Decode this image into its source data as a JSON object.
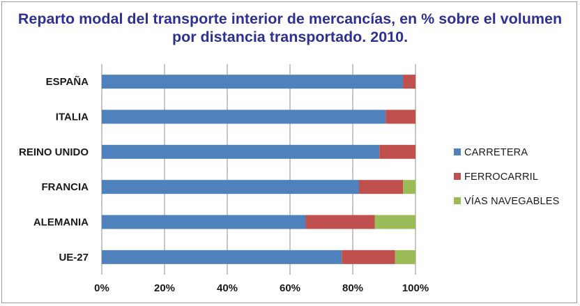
{
  "chart_data": {
    "type": "bar",
    "orientation": "horizontal",
    "stacked": true,
    "title_line1": "Reparto modal del transporte interior de mercancías, en % sobre el volumen",
    "title_line2": "por distancia transportado. 2010.",
    "categories": [
      "ESPAÑA",
      "ITALIA",
      "REINO UNIDO",
      "FRANCIA",
      "ALEMANIA",
      "UE-27"
    ],
    "series": [
      {
        "name": "CARRETERA",
        "color": "#4f81bd",
        "values": [
          96,
          90.5,
          88.5,
          82,
          65,
          76.5
        ]
      },
      {
        "name": "FERROCARRIL",
        "color": "#c0504d",
        "values": [
          4,
          9.5,
          11.5,
          14,
          22,
          17
        ]
      },
      {
        "name": "VÍAS NAVEGABLES",
        "color": "#9bbb59",
        "values": [
          0,
          0,
          0,
          4,
          13,
          6.5
        ]
      }
    ],
    "xlim": [
      0,
      100
    ],
    "xticks": [
      "0%",
      "20%",
      "40%",
      "60%",
      "80%",
      "100%"
    ],
    "grid": true,
    "legend_position": "right"
  }
}
